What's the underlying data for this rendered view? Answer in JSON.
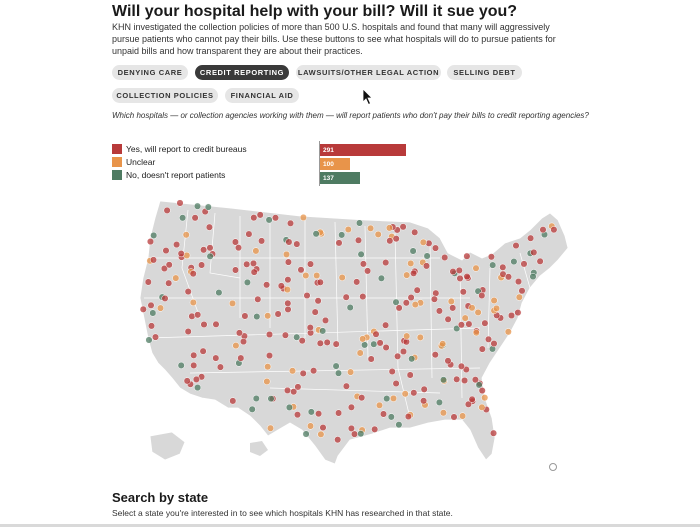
{
  "header": {
    "title": "Will your hospital help with your bill? Will it sue you?",
    "intro": "KHN investigated the collection policies of more than 500 U.S. hospitals and found that many will aggressively pursue patients who cannot pay their bills. Use these buttons to see what hospitals will do to pursue patients for unpaid bills and how transparent they are about their practices."
  },
  "filters": {
    "buttons": [
      {
        "label": "DENYING CARE",
        "active": false
      },
      {
        "label": "CREDIT REPORTING",
        "active": true
      },
      {
        "label": "LAWSUITS/OTHER LEGAL ACTION",
        "active": false
      },
      {
        "label": "SELLING DEBT",
        "active": false
      },
      {
        "label": "COLLECTION POLICIES",
        "active": false
      },
      {
        "label": "FINANCIAL AID",
        "active": false
      }
    ]
  },
  "question": "Which hospitals — or collection agencies working with them — will report patients who don't pay their bills to credit reporting agencies?",
  "legend": {
    "items": [
      {
        "label": "Yes, will report to credit bureaus",
        "count": "291",
        "value": 291,
        "color": "#b83a3a"
      },
      {
        "label": "Unclear",
        "count": "100",
        "value": 100,
        "color": "#e8944a"
      },
      {
        "label": "No, doesn't report patients",
        "count": "137",
        "value": 137,
        "color": "#4e7b62"
      }
    ]
  },
  "map": {
    "land_color": "#d8d8d8",
    "border_color": "#ffffff"
  },
  "search": {
    "heading": "Search by state",
    "subtext": "Select a state you're interested in to see which hospitals KHN has researched in that state."
  }
}
